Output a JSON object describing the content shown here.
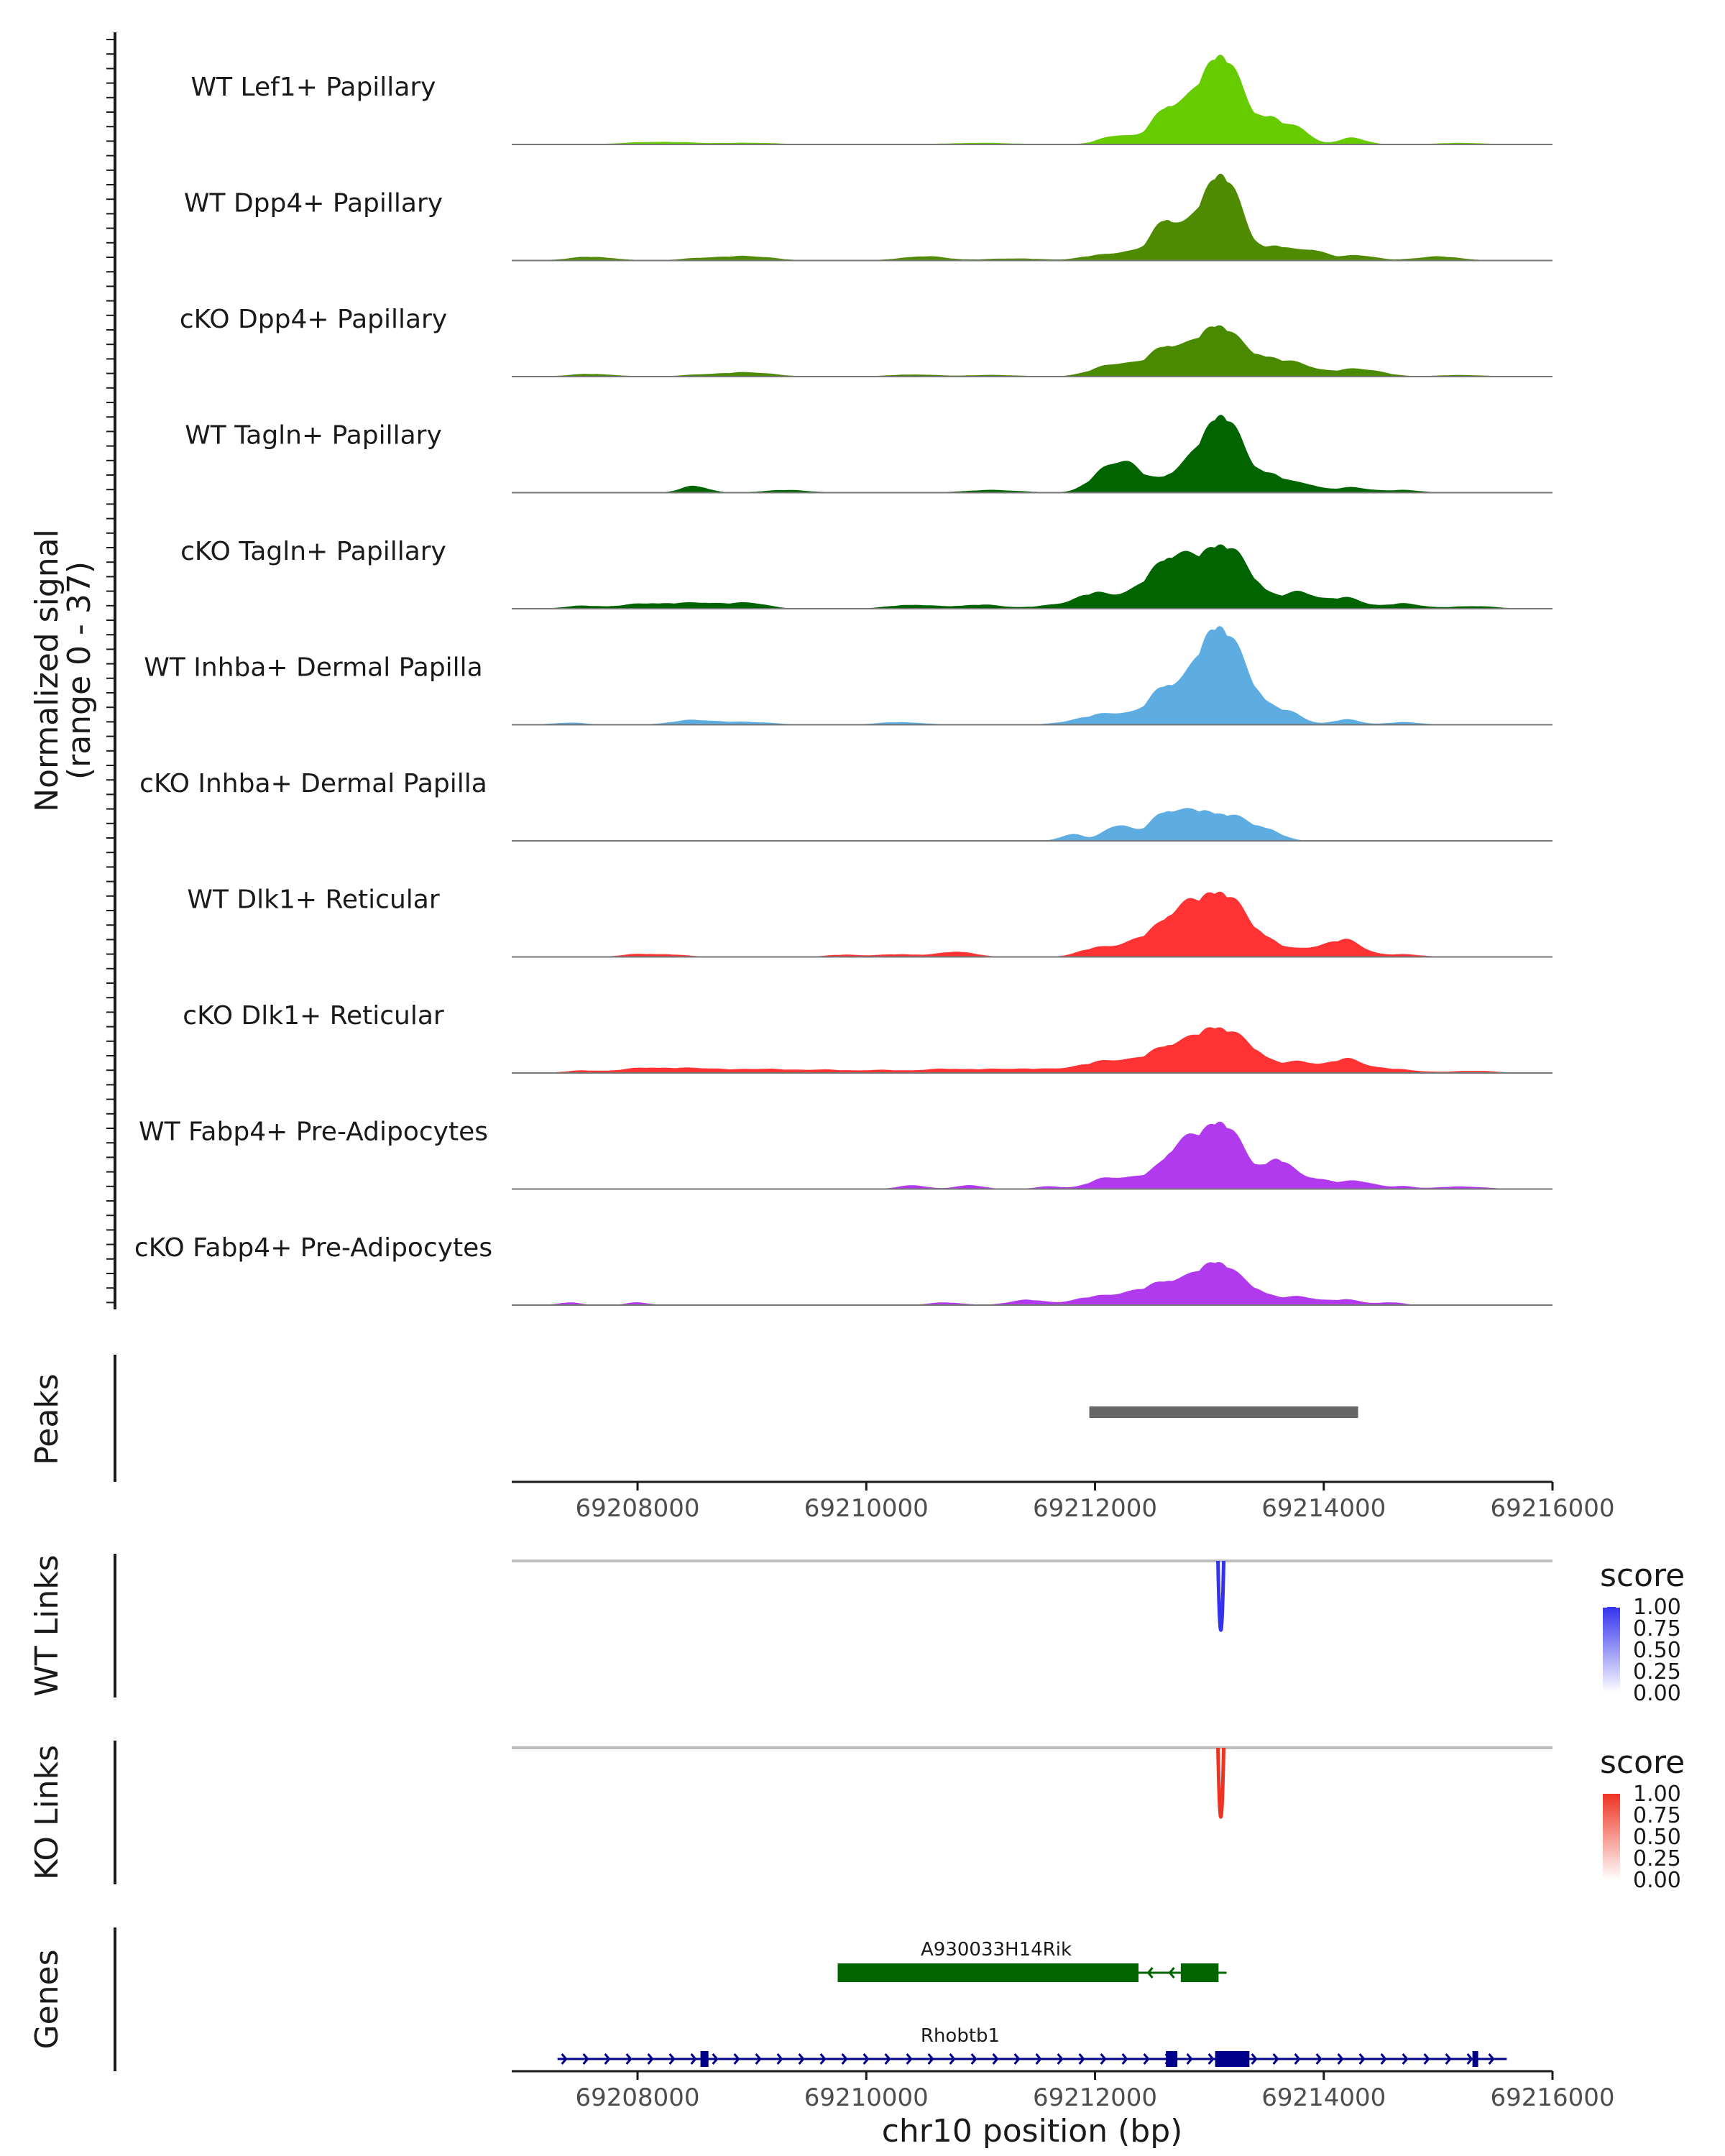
{
  "chart_data": {
    "type": "area",
    "region": "chr10",
    "xlabel": "chr10 position (bp)",
    "xlim": [
      69206900,
      69216000
    ],
    "xticks": [
      69208000,
      69210000,
      69212000,
      69214000,
      69216000
    ],
    "coverage": {
      "ylabel_line1": "Normalized signal",
      "ylabel_line2": "(range 0 - 37)",
      "ylim": [
        0,
        37
      ],
      "tracks": [
        {
          "name": "WT Lef1+ Papillary",
          "color": "#66CC00",
          "peaks": [
            [
              69208200,
              1,
              300
            ],
            [
              69209000,
              0.6,
              250
            ],
            [
              69211000,
              0.6,
              300
            ],
            [
              69212200,
              3.5,
              150
            ],
            [
              69212600,
              11,
              120
            ],
            [
              69212800,
              6,
              150
            ],
            [
              69213100,
              34,
              180
            ],
            [
              69213550,
              9,
              120
            ],
            [
              69213800,
              5,
              100
            ],
            [
              69214250,
              2.5,
              120
            ],
            [
              69215200,
              0.6,
              200
            ]
          ]
        },
        {
          "name": "WT Dpp4+ Papillary",
          "color": "#4E8B00",
          "peaks": [
            [
              69207600,
              1.4,
              200
            ],
            [
              69208600,
              1,
              200
            ],
            [
              69209000,
              1.5,
              200
            ],
            [
              69210500,
              1.6,
              200
            ],
            [
              69211300,
              0.8,
              250
            ],
            [
              69212000,
              1.6,
              150
            ],
            [
              69212300,
              3,
              150
            ],
            [
              69212600,
              13,
              110
            ],
            [
              69212800,
              5,
              150
            ],
            [
              69213100,
              33,
              170
            ],
            [
              69213600,
              5,
              120
            ],
            [
              69213900,
              4,
              120
            ],
            [
              69214300,
              2,
              150
            ],
            [
              69215000,
              1.5,
              200
            ]
          ]
        },
        {
          "name": "cKO Dpp4+ Papillary",
          "color": "#4A8A00",
          "peaks": [
            [
              69207600,
              1,
              200
            ],
            [
              69208600,
              0.8,
              200
            ],
            [
              69209000,
              1.5,
              200
            ],
            [
              69210400,
              0.8,
              200
            ],
            [
              69211100,
              0.6,
              250
            ],
            [
              69212200,
              5,
              200
            ],
            [
              69212600,
              9,
              130
            ],
            [
              69212900,
              6,
              200
            ],
            [
              69213100,
              16,
              180
            ],
            [
              69213500,
              6,
              150
            ],
            [
              69213800,
              4,
              150
            ],
            [
              69214300,
              3,
              200
            ],
            [
              69215200,
              0.6,
              200
            ]
          ]
        },
        {
          "name": "WT Tagln+ Papillary",
          "color": "#006400",
          "peaks": [
            [
              69208500,
              2.5,
              120
            ],
            [
              69209300,
              1,
              200
            ],
            [
              69211100,
              1,
              250
            ],
            [
              69212100,
              7,
              150
            ],
            [
              69212300,
              8,
              150
            ],
            [
              69212700,
              6,
              150
            ],
            [
              69213100,
              30,
              180
            ],
            [
              69213550,
              6,
              130
            ],
            [
              69213850,
              3,
              120
            ],
            [
              69214250,
              2,
              150
            ],
            [
              69214700,
              1,
              150
            ]
          ]
        },
        {
          "name": "cKO Tagln+ Papillary",
          "color": "#006400",
          "peaks": [
            [
              69207500,
              1,
              150
            ],
            [
              69208100,
              2,
              250
            ],
            [
              69208600,
              2,
              200
            ],
            [
              69209000,
              2,
              150
            ],
            [
              69210400,
              1.5,
              200
            ],
            [
              69211000,
              1.5,
              200
            ],
            [
              69211700,
              1.5,
              200
            ],
            [
              69212000,
              5,
              150
            ],
            [
              69212300,
              4,
              150
            ],
            [
              69212600,
              15,
              150
            ],
            [
              69212800,
              8,
              150
            ],
            [
              69213100,
              23,
              180
            ],
            [
              69213400,
              6,
              150
            ],
            [
              69213800,
              6,
              150
            ],
            [
              69214200,
              4,
              150
            ],
            [
              69214700,
              2,
              150
            ],
            [
              69215300,
              1,
              200
            ]
          ]
        },
        {
          "name": "WT Inhba+ Dermal Papilla",
          "color": "#5DADE2",
          "peaks": [
            [
              69207400,
              0.8,
              150
            ],
            [
              69208500,
              1.8,
              200
            ],
            [
              69209000,
              1,
              200
            ],
            [
              69210300,
              1,
              200
            ],
            [
              69211900,
              1.5,
              200
            ],
            [
              69212200,
              4,
              200
            ],
            [
              69212600,
              13,
              130
            ],
            [
              69212900,
              10,
              150
            ],
            [
              69213100,
              33,
              170
            ],
            [
              69213400,
              8,
              150
            ],
            [
              69213700,
              4,
              130
            ],
            [
              69214200,
              2,
              120
            ],
            [
              69214700,
              1,
              150
            ]
          ]
        },
        {
          "name": "cKO Inhba+ Dermal Papilla",
          "color": "#5DADE2",
          "peaks": [
            [
              69211800,
              2.5,
              100
            ],
            [
              69212200,
              6,
              120
            ],
            [
              69212600,
              10,
              130
            ],
            [
              69212900,
              10,
              150
            ],
            [
              69213200,
              8,
              150
            ],
            [
              69213500,
              4,
              130
            ]
          ]
        },
        {
          "name": "WT Dlk1+ Reticular",
          "color": "#FF3333",
          "peaks": [
            [
              69208000,
              1,
              150
            ],
            [
              69208300,
              0.8,
              150
            ],
            [
              69209800,
              0.8,
              150
            ],
            [
              69210300,
              1,
              200
            ],
            [
              69210800,
              2,
              150
            ],
            [
              69212000,
              3,
              150
            ],
            [
              69212300,
              4,
              150
            ],
            [
              69212600,
              10,
              150
            ],
            [
              69212800,
              8,
              150
            ],
            [
              69213100,
              24,
              200
            ],
            [
              69213500,
              5,
              150
            ],
            [
              69213900,
              3,
              150
            ],
            [
              69214200,
              6,
              150
            ],
            [
              69214700,
              1,
              150
            ]
          ]
        },
        {
          "name": "cKO Dlk1+ Reticular",
          "color": "#FF3333",
          "peaks": [
            [
              69207500,
              0.8,
              150
            ],
            [
              69208100,
              2,
              250
            ],
            [
              69208600,
              1.5,
              200
            ],
            [
              69209100,
              1.5,
              200
            ],
            [
              69209600,
              1.2,
              200
            ],
            [
              69210100,
              1,
              200
            ],
            [
              69210700,
              1.5,
              250
            ],
            [
              69211300,
              1.5,
              250
            ],
            [
              69211900,
              1.8,
              250
            ],
            [
              69212200,
              4,
              200
            ],
            [
              69212600,
              8,
              150
            ],
            [
              69212900,
              7,
              180
            ],
            [
              69213100,
              13,
              180
            ],
            [
              69213400,
              6,
              150
            ],
            [
              69213800,
              4,
              150
            ],
            [
              69214200,
              5,
              150
            ],
            [
              69214600,
              1.5,
              200
            ],
            [
              69215300,
              0.8,
              200
            ]
          ]
        },
        {
          "name": "WT Fabp4+ Pre-Adipocytes",
          "color": "#B23AEE",
          "peaks": [
            [
              69210400,
              1.5,
              120
            ],
            [
              69210900,
              1.5,
              120
            ],
            [
              69211600,
              1,
              120
            ],
            [
              69212100,
              4,
              150
            ],
            [
              69212400,
              3,
              150
            ],
            [
              69212700,
              12,
              150
            ],
            [
              69212900,
              8,
              150
            ],
            [
              69213100,
              20,
              150
            ],
            [
              69213300,
              6,
              150
            ],
            [
              69213600,
              10,
              120
            ],
            [
              69213900,
              4,
              150
            ],
            [
              69214300,
              3,
              150
            ],
            [
              69214700,
              1,
              100
            ],
            [
              69215200,
              1,
              200
            ]
          ]
        },
        {
          "name": "cKO Fabp4+ Pre-Adipocytes",
          "color": "#B23AEE",
          "peaks": [
            [
              69207400,
              1,
              100
            ],
            [
              69208000,
              1,
              100
            ],
            [
              69210700,
              1,
              150
            ],
            [
              69211400,
              2,
              150
            ],
            [
              69212000,
              3,
              200
            ],
            [
              69212300,
              3,
              150
            ],
            [
              69212600,
              8,
              150
            ],
            [
              69212900,
              7,
              150
            ],
            [
              69213100,
              13,
              150
            ],
            [
              69213400,
              5,
              150
            ],
            [
              69213800,
              3,
              150
            ],
            [
              69214200,
              2,
              150
            ],
            [
              69214600,
              1,
              100
            ]
          ]
        }
      ]
    },
    "peaks_track": {
      "label": "Peaks",
      "color": "#666666",
      "intervals": [
        [
          69211950,
          69214300
        ]
      ]
    },
    "links": [
      {
        "label": "WT Links",
        "color": "#3333EE",
        "from": 69213100,
        "to": 69213100,
        "score": 1.0
      },
      {
        "label": "KO Links",
        "color": "#EE3322",
        "from": 69213100,
        "to": 69213100,
        "score": 1.0
      }
    ],
    "legend": {
      "title": "score",
      "labels": [
        "1.00",
        "0.75",
        "0.50",
        "0.25",
        "0.00"
      ],
      "wt_color": "#3333EE",
      "ko_color": "#EE3322"
    },
    "genes_track": {
      "label": "Genes",
      "genes": [
        {
          "name": "A930033H14Rik",
          "strand": "-",
          "color": "#006400",
          "start": 69209750,
          "end": 69213150,
          "exons": [
            [
              69209750,
              69212380
            ],
            [
              69212750,
              69213080
            ]
          ]
        },
        {
          "name": "Rhobtb1",
          "strand": "+",
          "color": "#00008B",
          "start": 69207300,
          "end": 69215600,
          "exons": [
            [
              69208550,
              69208620
            ],
            [
              69212620,
              69212720
            ],
            [
              69213050,
              69213350
            ],
            [
              69215300,
              69215350
            ]
          ]
        }
      ]
    }
  }
}
